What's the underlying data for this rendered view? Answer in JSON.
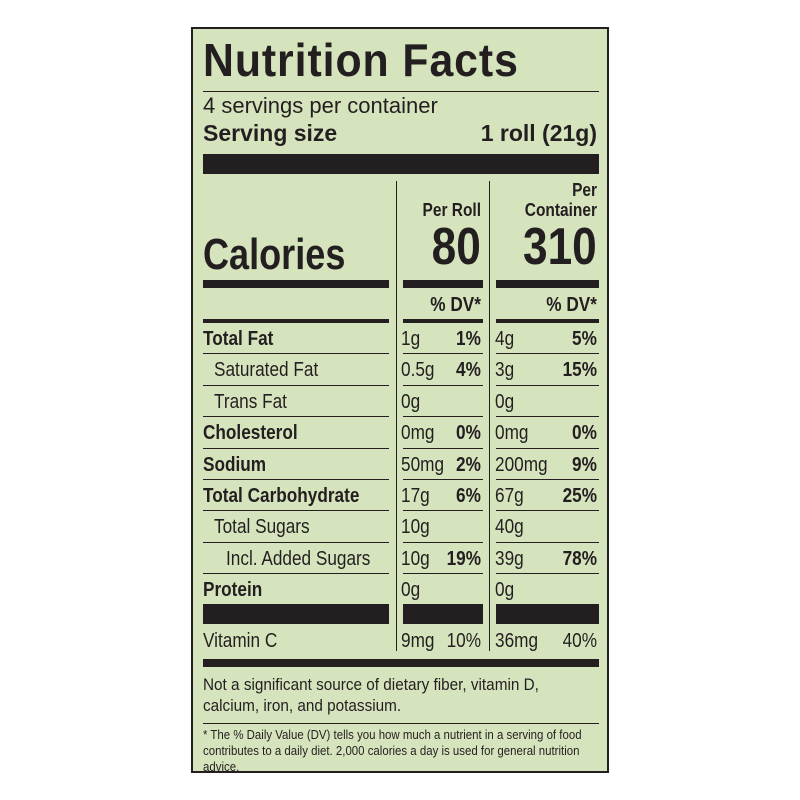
{
  "title": "Nutrition Facts",
  "servings_per_container": "4 servings per container",
  "serving_size_label": "Serving size",
  "serving_size_value": "1 roll (21g)",
  "calories_label": "Calories",
  "col1_header": "Per Roll",
  "col2_header_line1": "Per",
  "col2_header_line2": "Container",
  "calories_col1": "80",
  "calories_col2": "310",
  "dv_header": "% DV*",
  "rows": [
    {
      "name": "Total Fat",
      "bold": true,
      "indent": 0,
      "c1_amt": "1g",
      "c1_dv": "1%",
      "c2_amt": "4g",
      "c2_dv": "5%"
    },
    {
      "name": "Saturated Fat",
      "bold": false,
      "indent": 1,
      "c1_amt": "0.5g",
      "c1_dv": "4%",
      "c2_amt": "3g",
      "c2_dv": "15%"
    },
    {
      "name": "Trans Fat",
      "bold": false,
      "indent": 1,
      "c1_amt": "0g",
      "c1_dv": "",
      "c2_amt": "0g",
      "c2_dv": ""
    },
    {
      "name": "Cholesterol",
      "bold": true,
      "indent": 0,
      "c1_amt": "0mg",
      "c1_dv": "0%",
      "c2_amt": "0mg",
      "c2_dv": "0%"
    },
    {
      "name": "Sodium",
      "bold": true,
      "indent": 0,
      "c1_amt": "50mg",
      "c1_dv": "2%",
      "c2_amt": "200mg",
      "c2_dv": "9%"
    },
    {
      "name": "Total Carbohydrate",
      "bold": true,
      "indent": 0,
      "c1_amt": "17g",
      "c1_dv": "6%",
      "c2_amt": "67g",
      "c2_dv": "25%"
    },
    {
      "name": "Total Sugars",
      "bold": false,
      "indent": 1,
      "c1_amt": "10g",
      "c1_dv": "",
      "c2_amt": "40g",
      "c2_dv": ""
    },
    {
      "name": "Incl. Added Sugars",
      "bold": false,
      "indent": 2,
      "c1_amt": "10g",
      "c1_dv": "19%",
      "c2_amt": "39g",
      "c2_dv": "78%"
    },
    {
      "name": "Protein",
      "bold": true,
      "indent": 0,
      "c1_amt": "0g",
      "c1_dv": "",
      "c2_amt": "0g",
      "c2_dv": ""
    }
  ],
  "vitamin": {
    "name": "Vitamin C",
    "c1_amt": "9mg",
    "c1_dv": "10%",
    "c2_amt": "36mg",
    "c2_dv": "40%"
  },
  "note": "Not a significant source of dietary fiber, vitamin D, calcium, iron, and potassium.",
  "footnote": "* The % Daily Value (DV) tells you how much a nutrient in a serving of food contributes to a daily diet. 2,000 calories a day is used for general nutrition advice.",
  "colors": {
    "background": "#d6e4bd",
    "ink": "#231f20"
  }
}
